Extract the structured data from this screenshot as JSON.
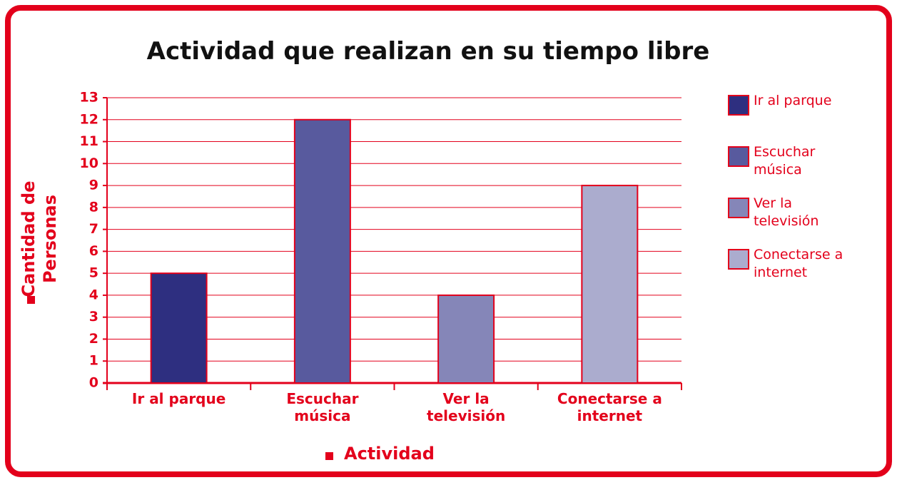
{
  "chart_data": {
    "type": "bar",
    "title": "Actividad que realizan en su tiempo libre",
    "y_label": "Cantidad de Personas",
    "x_label": "Actividad",
    "categories": [
      "Ir al parque",
      "Escuchar música",
      "Ver la televisión",
      "Conectarse a internet"
    ],
    "values": [
      5,
      12,
      4,
      9
    ],
    "colors": [
      "#2e2f80",
      "#585a9e",
      "#8586b8",
      "#abacce"
    ],
    "ylim": [
      0,
      13
    ],
    "yticks": [
      0,
      1,
      2,
      3,
      4,
      5,
      6,
      7,
      8,
      9,
      10,
      11,
      12,
      13
    ],
    "grid": true,
    "legend": "right"
  }
}
